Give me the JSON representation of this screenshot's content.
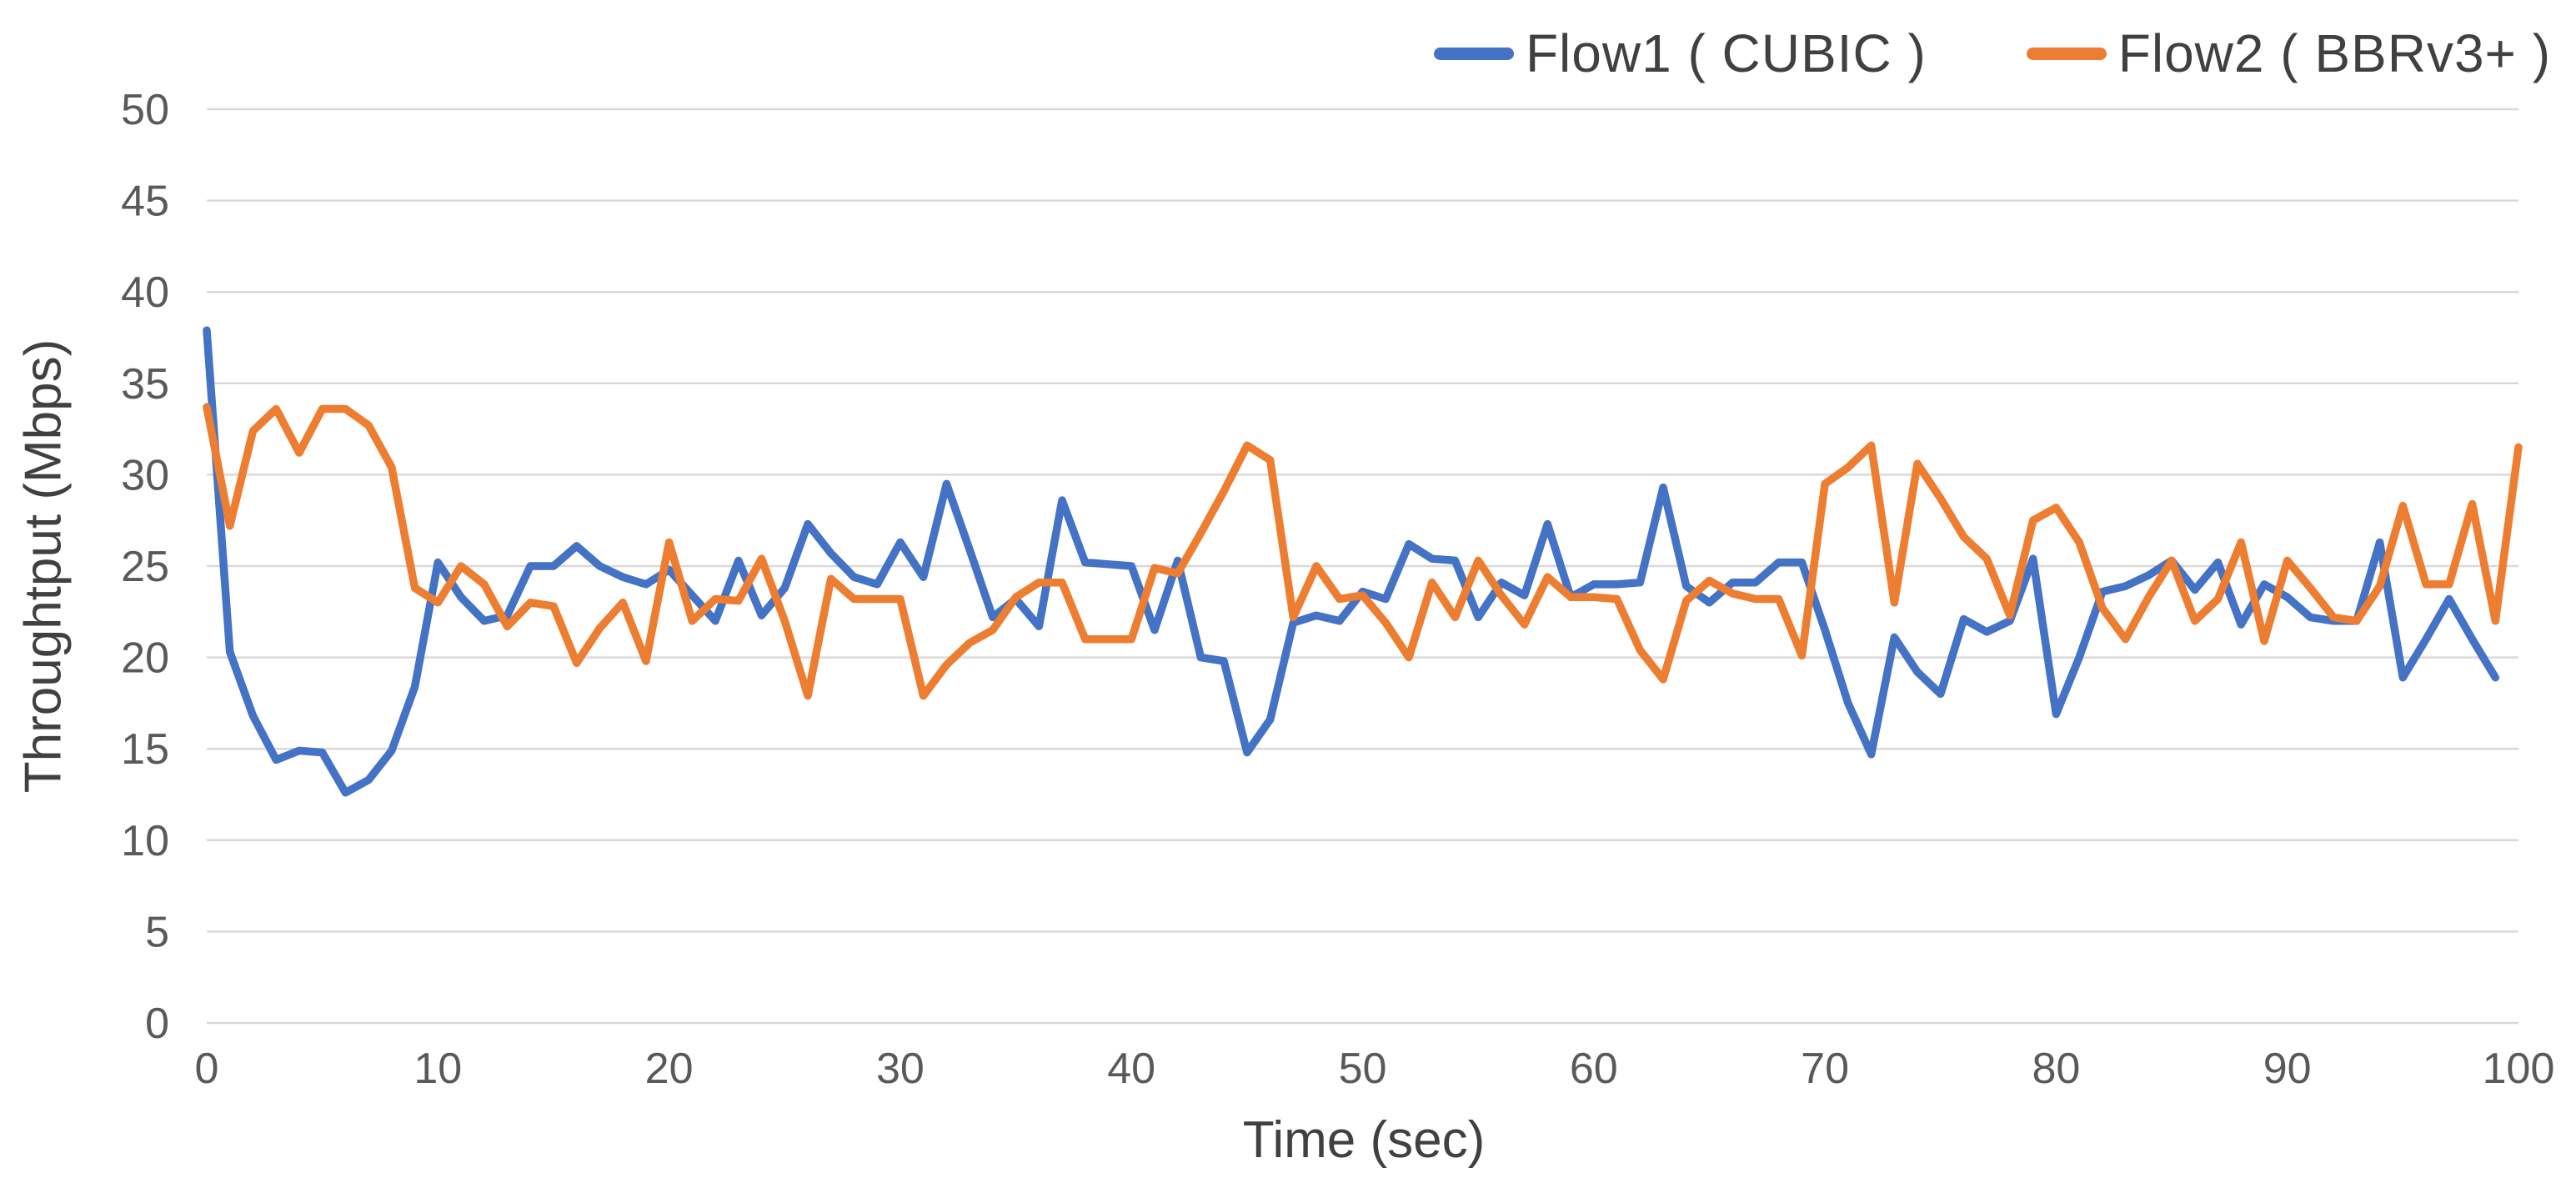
{
  "chart_data": {
    "type": "line",
    "title": "",
    "xlabel": "Time (sec)",
    "ylabel": "Throughtput (Mbps)",
    "xlim": [
      0,
      100
    ],
    "ylim": [
      0,
      50
    ],
    "x_ticks": [
      0,
      10,
      20,
      30,
      40,
      50,
      60,
      70,
      80,
      90,
      100
    ],
    "y_ticks": [
      0,
      5,
      10,
      15,
      20,
      25,
      30,
      35,
      40,
      45,
      50
    ],
    "grid": "horizontal-only",
    "legend_position": "top-right",
    "colors": {
      "background": "#ffffff",
      "gridline": "#d9d9d9",
      "tick_text": "#595959",
      "title_text": "#404040",
      "flow1": "#4472C4",
      "flow2": "#ED7D31"
    },
    "series": [
      {
        "name": "Flow1 ( CUBIC )",
        "color": "#4472C4",
        "x_start": 0,
        "x_step": 1,
        "values": [
          37.9,
          20.3,
          16.8,
          14.4,
          14.9,
          14.8,
          12.6,
          13.3,
          14.9,
          18.4,
          25.2,
          23.3,
          22.0,
          22.3,
          25.0,
          25.0,
          26.1,
          25.0,
          24.4,
          24.0,
          24.8,
          23.4,
          22.0,
          25.3,
          22.3,
          23.8,
          27.3,
          25.7,
          24.4,
          24.0,
          26.3,
          24.4,
          29.5,
          25.9,
          22.2,
          23.2,
          21.7,
          28.6,
          25.2,
          25.1,
          25.0,
          21.5,
          25.3,
          20.0,
          19.8,
          14.8,
          16.6,
          21.9,
          22.3,
          22.0,
          23.6,
          23.2,
          26.2,
          25.4,
          25.3,
          22.2,
          24.1,
          23.4,
          27.3,
          23.3,
          24.0,
          24.0,
          24.1,
          29.3,
          23.9,
          23.0,
          24.1,
          24.1,
          25.2,
          25.2,
          21.5,
          17.5,
          14.7,
          21.1,
          19.2,
          18.0,
          22.1,
          21.4,
          22.0,
          25.4,
          16.9,
          20.0,
          23.6,
          23.9,
          24.5,
          25.3,
          23.7,
          25.2,
          21.8,
          24.0,
          23.3,
          22.2,
          22.0,
          22.0,
          26.3,
          18.9,
          21.0,
          23.2,
          21.0,
          18.9
        ]
      },
      {
        "name": "Flow2 ( BBRv3+ )",
        "color": "#ED7D31",
        "x_start": 0,
        "x_step": 1,
        "values": [
          33.7,
          27.2,
          32.4,
          33.6,
          31.2,
          33.6,
          33.6,
          32.7,
          30.4,
          23.8,
          23.0,
          25.0,
          24.0,
          21.7,
          23.0,
          22.8,
          19.7,
          21.6,
          23.0,
          19.8,
          26.3,
          22.0,
          23.2,
          23.1,
          25.4,
          22.0,
          17.9,
          24.3,
          23.2,
          23.2,
          23.2,
          17.9,
          19.6,
          20.8,
          21.5,
          23.3,
          24.1,
          24.1,
          21.0,
          21.0,
          21.0,
          24.9,
          24.6,
          26.8,
          29.1,
          31.6,
          30.8,
          22.2,
          25.0,
          23.2,
          23.4,
          21.9,
          20.0,
          24.1,
          22.2,
          25.3,
          23.4,
          21.8,
          24.4,
          23.3,
          23.3,
          23.2,
          20.4,
          18.8,
          23.1,
          24.2,
          23.5,
          23.2,
          23.2,
          20.1,
          29.5,
          30.4,
          31.6,
          23.0,
          30.6,
          28.7,
          26.6,
          25.4,
          22.3,
          27.5,
          28.2,
          26.3,
          22.7,
          21.0,
          23.3,
          25.3,
          22.0,
          23.2,
          26.3,
          20.9,
          25.3,
          23.8,
          22.2,
          22.0,
          23.9,
          28.3,
          24.0,
          24.0,
          28.4,
          22.0,
          31.5
        ]
      }
    ]
  }
}
